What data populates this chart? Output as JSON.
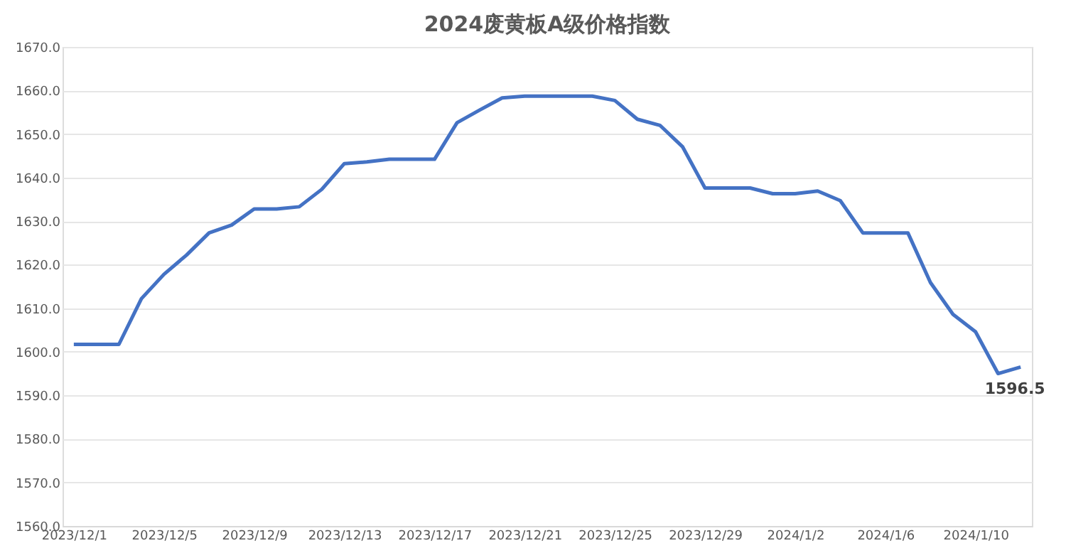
{
  "chart_data": {
    "type": "line",
    "title": "2024废黄板A级价格指数",
    "categories": [
      "2023/12/1",
      null,
      null,
      null,
      "2023/12/5",
      null,
      null,
      null,
      "2023/12/9",
      null,
      null,
      null,
      "2023/12/13",
      null,
      null,
      null,
      "2023/12/17",
      null,
      null,
      null,
      "2023/12/21",
      null,
      null,
      null,
      "2023/12/25",
      null,
      null,
      null,
      "2023/12/29",
      null,
      null,
      null,
      "2024/1/2",
      null,
      null,
      null,
      "2024/1/6",
      null,
      null,
      null,
      "2024/1/10",
      null,
      null
    ],
    "series": [
      {
        "color": "#4472c4",
        "values": [
          1601.7,
          1601.7,
          1601.7,
          1612.2,
          1617.8,
          1622.2,
          1627.3,
          1629.1,
          1632.8,
          1632.8,
          1633.3,
          1637.3,
          1643.2,
          1643.6,
          1644.2,
          1644.2,
          1644.2,
          1652.6,
          1655.5,
          1658.3,
          1658.7,
          1658.7,
          1658.7,
          1658.7,
          1657.7,
          1653.4,
          1652.0,
          1647.1,
          1637.6,
          1637.6,
          1637.6,
          1636.3,
          1636.3,
          1636.9,
          1634.7,
          1627.3,
          1627.3,
          1627.3,
          1615.9,
          1608.6,
          1604.6,
          1595.0,
          1596.5
        ],
        "value_labels": [
          null,
          null,
          null,
          null,
          null,
          null,
          null,
          null,
          null,
          null,
          null,
          null,
          null,
          null,
          null,
          null,
          null,
          null,
          null,
          null,
          null,
          null,
          null,
          null,
          null,
          null,
          null,
          null,
          null,
          null,
          null,
          null,
          null,
          null,
          null,
          null,
          null,
          null,
          null,
          null,
          null,
          null,
          "1596.5"
        ]
      }
    ],
    "ylim": [
      1560,
      1670
    ],
    "yticks": [
      {
        "value": 1560,
        "label": "1560.0"
      },
      {
        "value": 1570,
        "label": "1570.0"
      },
      {
        "value": 1580,
        "label": "1580.0"
      },
      {
        "value": 1590,
        "label": "1590.0"
      },
      {
        "value": 1600,
        "label": "1600.0"
      },
      {
        "value": 1610,
        "label": "1610.0"
      },
      {
        "value": 1620,
        "label": "1620.0"
      },
      {
        "value": 1630,
        "label": "1630.0"
      },
      {
        "value": 1640,
        "label": "1640.0"
      },
      {
        "value": 1650,
        "label": "1650.0"
      },
      {
        "value": 1660,
        "label": "1660.0"
      },
      {
        "value": 1670,
        "label": "1670.0"
      }
    ],
    "grid": "y",
    "marker": "none",
    "line_style": "solid"
  }
}
